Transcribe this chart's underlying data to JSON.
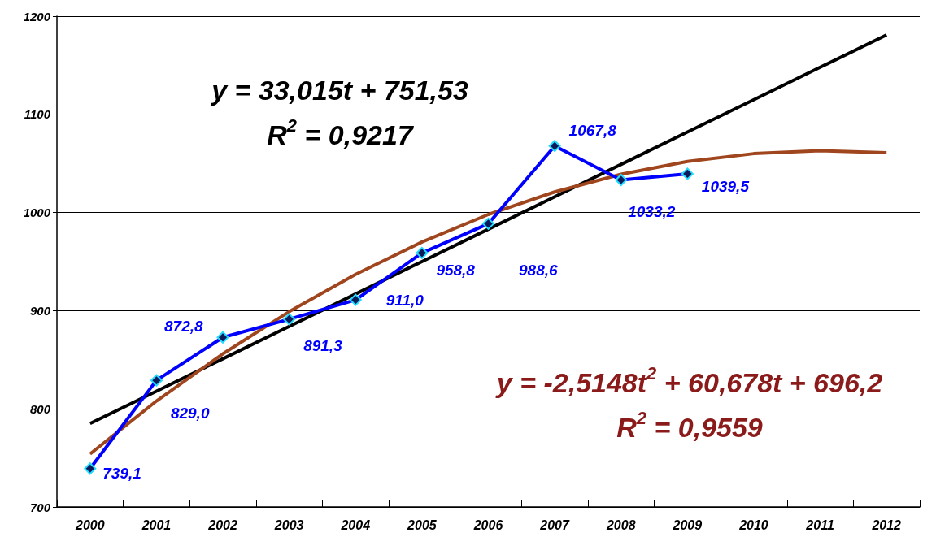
{
  "chart_data": {
    "type": "line",
    "categories": [
      "2000",
      "2001",
      "2002",
      "2003",
      "2004",
      "2005",
      "2006",
      "2007",
      "2008",
      "2009",
      "2010",
      "2011",
      "2012"
    ],
    "series": [
      {
        "color": "#000000",
        "marker": "none",
        "values": [
          785,
          818,
          851,
          884,
          917,
          950,
          983,
          1016,
          1049,
          1082,
          1115,
          1148,
          1181
        ]
      },
      {
        "color": "#a0461e",
        "marker": "none",
        "values": [
          754,
          808,
          856,
          899,
          937,
          970,
          998,
          1021,
          1039,
          1052,
          1060,
          1063,
          1061
        ]
      },
      {
        "color": "#0000ff",
        "marker": "diamond",
        "values": [
          739.1,
          829.0,
          872.8,
          891.3,
          911.0,
          958.8,
          988.6,
          1067.8,
          1033.2,
          1039.5,
          null,
          null,
          null
        ],
        "value_labels": [
          "739,1",
          "829,0",
          "872,8",
          "891,3",
          "911,0",
          "958,8",
          "988,6",
          "1067,8",
          "1033,2",
          "1039,5",
          null,
          null,
          null
        ]
      }
    ],
    "ylim": [
      700,
      1200
    ],
    "yticks": [
      700,
      800,
      900,
      1000,
      1100,
      1200
    ],
    "grid": "y",
    "annotations": [
      "y = 33,015t + 751,53",
      "R$^{2}$ = 0,9217",
      "y = -2,5148t$^{2}$ + 60,678t + 696,2",
      "R$^{2}$ = 0,9559"
    ]
  }
}
